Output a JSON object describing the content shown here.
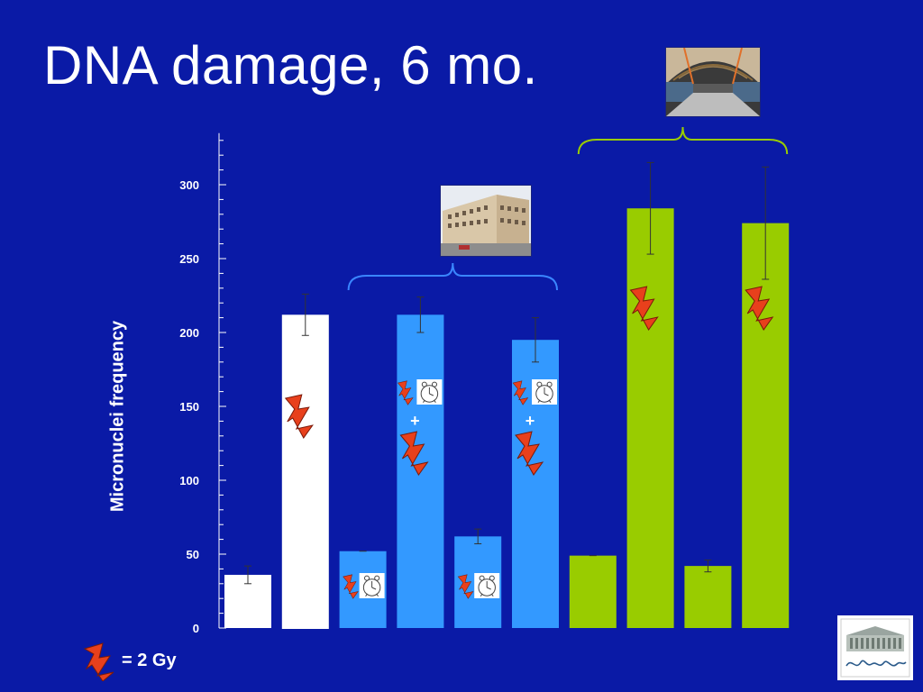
{
  "title": "DNA damage, 6 mo.",
  "colors": {
    "background": "#0a1aa6",
    "white_bar": "#ffffff",
    "blue_bar": "#3399ff",
    "green_bar": "#99cc00",
    "bolt": "#e8401c",
    "brace_blue": "#3a86ff",
    "brace_green": "#99cc00"
  },
  "legend": {
    "text": "= 2 Gy",
    "icon": "lightning-bolt-icon"
  },
  "annotations": {
    "plus_sign": "+"
  },
  "chart_data": {
    "type": "bar",
    "ylabel": "Micronuclei  frequency",
    "xlabel": "",
    "ylim": [
      0,
      330
    ],
    "yticks": [
      0,
      50,
      100,
      150,
      200,
      250,
      300
    ],
    "grid": false,
    "bars": [
      {
        "value": 36,
        "error": 6,
        "group": "white",
        "icons": []
      },
      {
        "value": 212,
        "error": 14,
        "group": "white",
        "icons": [
          "lightning-bolt-icon"
        ]
      },
      {
        "value": 52,
        "error": 0,
        "group": "blue",
        "icons": [
          "small-bolt-icon",
          "clock-face-icon"
        ]
      },
      {
        "value": 212,
        "error": 12,
        "group": "blue",
        "icons": [
          "small-bolt-icon",
          "clock-face-icon",
          "plus",
          "lightning-bolt-icon"
        ]
      },
      {
        "value": 62,
        "error": 5,
        "group": "blue",
        "icons": [
          "small-bolt-icon",
          "clock-face-icon"
        ]
      },
      {
        "value": 195,
        "error": 15,
        "group": "blue",
        "icons": [
          "small-bolt-icon",
          "clock-face-icon",
          "plus",
          "lightning-bolt-icon"
        ]
      },
      {
        "value": 49,
        "error": 0,
        "group": "green",
        "icons": []
      },
      {
        "value": 284,
        "error": 31,
        "group": "green",
        "icons": [
          "lightning-bolt-icon"
        ]
      },
      {
        "value": 42,
        "error": 4,
        "group": "green",
        "icons": []
      },
      {
        "value": 274,
        "error": 38,
        "group": "green",
        "icons": [
          "lightning-bolt-icon"
        ]
      }
    ],
    "braces": [
      {
        "group": "blue",
        "from_bar": 2,
        "to_bar": 5,
        "picture": "building-photo"
      },
      {
        "group": "green",
        "from_bar": 6,
        "to_bar": 9,
        "picture": "tunnel-photo"
      }
    ]
  }
}
